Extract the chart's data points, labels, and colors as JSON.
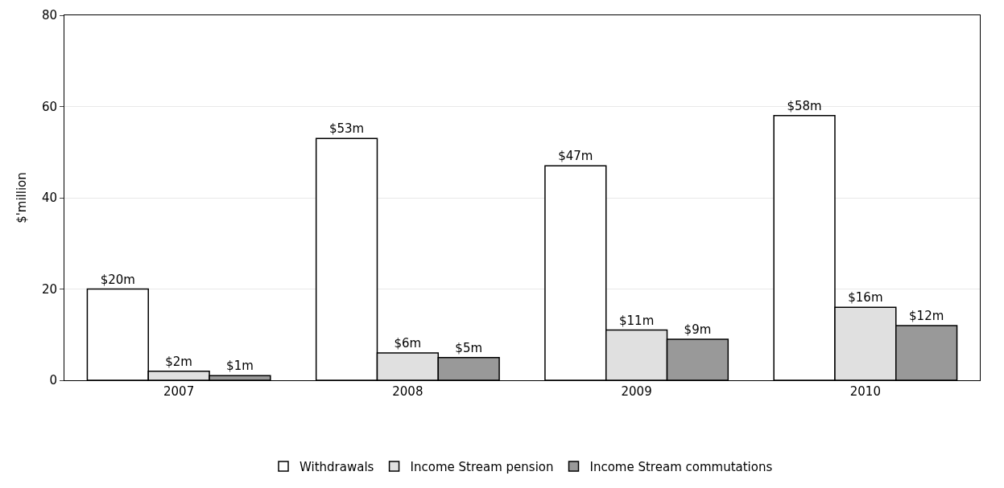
{
  "chart_data": {
    "type": "bar",
    "ylabel": "$'million",
    "categories": [
      "2007",
      "2008",
      "2009",
      "2010"
    ],
    "series": [
      {
        "name": "Withdrawals",
        "color": "#ffffff",
        "values": [
          20,
          53,
          47,
          58
        ],
        "value_labels": [
          "$20m",
          "$53m",
          "$47m",
          "$58m"
        ]
      },
      {
        "name": "Income Stream pension",
        "color": "#e0e0e0",
        "values": [
          2,
          6,
          11,
          16
        ],
        "value_labels": [
          "$2m",
          "$6m",
          "$11m",
          "$16m"
        ]
      },
      {
        "name": "Income Stream commutations",
        "color": "#999999",
        "values": [
          1,
          5,
          9,
          12
        ],
        "value_labels": [
          "$1m",
          "$5m",
          "$9m",
          "$12m"
        ]
      }
    ],
    "ylim": [
      0,
      80
    ],
    "yticks": [
      0,
      20,
      40,
      60,
      80
    ],
    "grid": "y",
    "legend": "bottom"
  }
}
